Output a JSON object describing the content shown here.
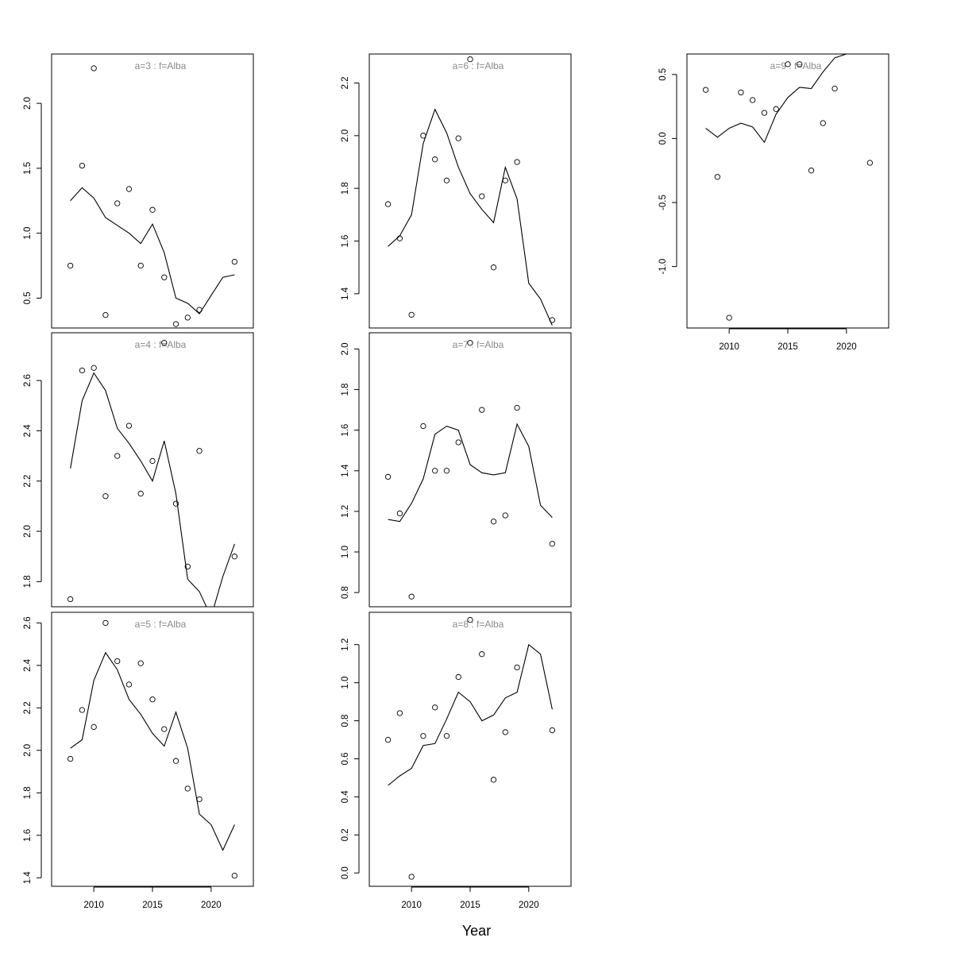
{
  "chart_data": {
    "type": "line",
    "xlabel": "Year",
    "ylabel": "",
    "xlim": [
      2006.4,
      2023.6
    ],
    "xticks": [
      2010,
      2015,
      2020
    ],
    "overlay": "points = observed, line = fitted",
    "panels": [
      {
        "title": "a=3  :  f=Alba",
        "ylim": [
          0.27,
          2.38
        ],
        "yticks": [
          0.5,
          1.0,
          1.5,
          2.0
        ],
        "ytick_labels": [
          "0.5",
          "1.0",
          "1.5",
          "2.0"
        ],
        "x_axis_shown": false,
        "points": {
          "x": [
            2008,
            2009,
            2010,
            2011,
            2012,
            2013,
            2014,
            2015,
            2016,
            2017,
            2018,
            2019,
            2022
          ],
          "y": [
            0.75,
            1.52,
            2.27,
            0.37,
            1.23,
            1.34,
            0.75,
            1.18,
            0.66,
            0.3,
            0.35,
            0.41,
            0.78
          ]
        },
        "line": {
          "x": [
            2008,
            2009,
            2010,
            2011,
            2012,
            2013,
            2014,
            2015,
            2016,
            2017,
            2018,
            2019,
            2020,
            2021,
            2022
          ],
          "y": [
            1.25,
            1.35,
            1.27,
            1.12,
            1.06,
            1.0,
            0.92,
            1.07,
            0.85,
            0.5,
            0.46,
            0.38,
            0.52,
            0.66,
            0.68
          ]
        }
      },
      {
        "title": "a=4  :  f=Alba",
        "ylim": [
          1.7,
          2.79
        ],
        "yticks": [
          1.8,
          2.0,
          2.2,
          2.4,
          2.6
        ],
        "ytick_labels": [
          "1.8",
          "2.0",
          "2.2",
          "2.4",
          "2.6"
        ],
        "x_axis_shown": false,
        "points": {
          "x": [
            2008,
            2009,
            2010,
            2011,
            2012,
            2013,
            2014,
            2015,
            2016,
            2017,
            2018,
            2019,
            2022
          ],
          "y": [
            1.73,
            2.64,
            2.65,
            2.14,
            2.3,
            2.42,
            2.15,
            2.28,
            2.75,
            2.11,
            1.86,
            2.32,
            1.9
          ]
        },
        "line": {
          "x": [
            2008,
            2009,
            2010,
            2011,
            2012,
            2013,
            2014,
            2015,
            2016,
            2017,
            2018,
            2019,
            2020,
            2021,
            2022
          ],
          "y": [
            2.25,
            2.52,
            2.63,
            2.56,
            2.41,
            2.35,
            2.28,
            2.2,
            2.36,
            2.15,
            1.81,
            1.76,
            1.66,
            1.82,
            1.95
          ]
        }
      },
      {
        "title": "a=5  :  f=Alba",
        "ylim": [
          1.36,
          2.65
        ],
        "yticks": [
          1.4,
          1.6,
          1.8,
          2.0,
          2.2,
          2.4,
          2.6
        ],
        "ytick_labels": [
          "1.4",
          "1.6",
          "1.8",
          "2.0",
          "2.2",
          "2.4",
          "2.6"
        ],
        "x_axis_shown": true,
        "points": {
          "x": [
            2008,
            2009,
            2010,
            2011,
            2012,
            2013,
            2014,
            2015,
            2016,
            2017,
            2018,
            2019,
            2022
          ],
          "y": [
            1.96,
            2.19,
            2.11,
            2.6,
            2.42,
            2.31,
            2.41,
            2.24,
            2.1,
            1.95,
            1.82,
            1.77,
            1.41
          ]
        },
        "line": {
          "x": [
            2008,
            2009,
            2010,
            2011,
            2012,
            2013,
            2014,
            2015,
            2016,
            2017,
            2018,
            2019,
            2020,
            2021,
            2022
          ],
          "y": [
            2.01,
            2.05,
            2.33,
            2.46,
            2.38,
            2.24,
            2.17,
            2.08,
            2.02,
            2.18,
            2.01,
            1.7,
            1.65,
            1.53,
            1.65
          ]
        }
      },
      {
        "title": "a=6  :  f=Alba",
        "ylim": [
          1.27,
          2.31
        ],
        "yticks": [
          1.4,
          1.6,
          1.8,
          2.0,
          2.2
        ],
        "ytick_labels": [
          "1.4",
          "1.6",
          "1.8",
          "2.0",
          "2.2"
        ],
        "x_axis_shown": false,
        "points": {
          "x": [
            2008,
            2009,
            2010,
            2011,
            2012,
            2013,
            2014,
            2015,
            2016,
            2017,
            2018,
            2019,
            2022
          ],
          "y": [
            1.74,
            1.61,
            1.32,
            2.0,
            1.91,
            1.83,
            1.99,
            2.29,
            1.77,
            1.5,
            1.83,
            1.9,
            1.3
          ]
        },
        "line": {
          "x": [
            2008,
            2009,
            2010,
            2011,
            2012,
            2013,
            2014,
            2015,
            2016,
            2017,
            2018,
            2019,
            2020,
            2021,
            2022
          ],
          "y": [
            1.58,
            1.62,
            1.7,
            1.97,
            2.1,
            2.01,
            1.88,
            1.78,
            1.72,
            1.67,
            1.88,
            1.76,
            1.44,
            1.38,
            1.28
          ]
        }
      },
      {
        "title": "a=7  :  f=Alba",
        "ylim": [
          0.73,
          2.08
        ],
        "yticks": [
          0.8,
          1.0,
          1.2,
          1.4,
          1.6,
          1.8,
          2.0
        ],
        "ytick_labels": [
          "0.8",
          "1.0",
          "1.2",
          "1.4",
          "1.6",
          "1.8",
          "2.0"
        ],
        "x_axis_shown": false,
        "points": {
          "x": [
            2008,
            2009,
            2010,
            2011,
            2012,
            2013,
            2014,
            2015,
            2016,
            2017,
            2018,
            2019,
            2022
          ],
          "y": [
            1.37,
            1.19,
            0.78,
            1.62,
            1.4,
            1.4,
            1.54,
            2.03,
            1.7,
            1.15,
            1.18,
            1.71,
            1.04
          ]
        },
        "line": {
          "x": [
            2008,
            2009,
            2010,
            2011,
            2012,
            2013,
            2014,
            2015,
            2016,
            2017,
            2018,
            2019,
            2020,
            2021,
            2022
          ],
          "y": [
            1.16,
            1.15,
            1.24,
            1.36,
            1.58,
            1.62,
            1.6,
            1.43,
            1.39,
            1.38,
            1.39,
            1.63,
            1.52,
            1.23,
            1.17
          ]
        }
      },
      {
        "title": "a=8  :  f=Alba",
        "ylim": [
          -0.07,
          1.37
        ],
        "yticks": [
          0.0,
          0.2,
          0.4,
          0.6,
          0.8,
          1.0,
          1.2
        ],
        "ytick_labels": [
          "0.0",
          "0.2",
          "0.4",
          "0.6",
          "0.8",
          "1.0",
          "1.2"
        ],
        "x_axis_shown": true,
        "points": {
          "x": [
            2008,
            2009,
            2010,
            2011,
            2012,
            2013,
            2014,
            2015,
            2016,
            2017,
            2018,
            2019,
            2022
          ],
          "y": [
            0.7,
            0.84,
            -0.02,
            0.72,
            0.87,
            0.72,
            1.03,
            1.33,
            1.15,
            0.49,
            0.74,
            1.08,
            0.75
          ]
        },
        "line": {
          "x": [
            2008,
            2009,
            2010,
            2011,
            2012,
            2013,
            2014,
            2015,
            2016,
            2017,
            2018,
            2019,
            2020,
            2021,
            2022
          ],
          "y": [
            0.46,
            0.51,
            0.55,
            0.67,
            0.68,
            0.81,
            0.95,
            0.9,
            0.8,
            0.83,
            0.92,
            0.95,
            1.2,
            1.15,
            0.86
          ]
        }
      },
      {
        "title": "a=9  :  f=Alba",
        "ylim": [
          -1.48,
          0.66
        ],
        "yticks": [
          -1.0,
          -0.5,
          0.0,
          0.5
        ],
        "ytick_labels": [
          "-1.0",
          "-0.5",
          "0.0",
          "0.5"
        ],
        "x_axis_shown": true,
        "points": {
          "x": [
            2008,
            2009,
            2010,
            2011,
            2012,
            2013,
            2014,
            2015,
            2016,
            2017,
            2018,
            2019,
            2022
          ],
          "y": [
            0.38,
            -0.3,
            -1.4,
            0.36,
            0.3,
            0.2,
            0.23,
            0.58,
            0.58,
            -0.25,
            0.12,
            0.39,
            -0.19
          ]
        },
        "line": {
          "x": [
            2008,
            2009,
            2010,
            2011,
            2012,
            2013,
            2014,
            2015,
            2016,
            2017,
            2018,
            2019,
            2020
          ],
          "y": [
            0.08,
            0.01,
            0.08,
            0.12,
            0.09,
            -0.03,
            0.19,
            0.32,
            0.4,
            0.39,
            0.52,
            0.63,
            0.66
          ]
        }
      }
    ]
  }
}
